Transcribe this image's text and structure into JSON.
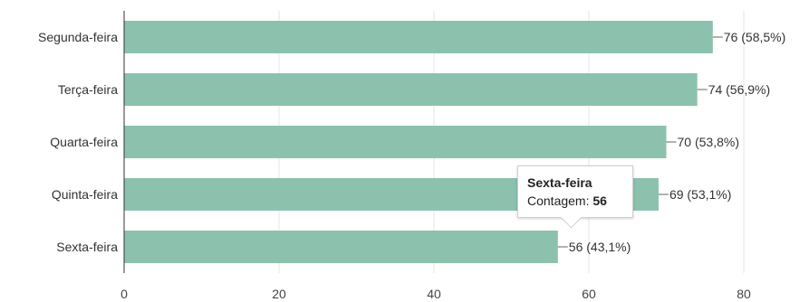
{
  "chart_data": {
    "type": "bar",
    "orientation": "horizontal",
    "categories": [
      "Segunda-feira",
      "Terça-feira",
      "Quarta-feira",
      "Quinta-feira",
      "Sexta-feira"
    ],
    "values": [
      76,
      74,
      70,
      69,
      56
    ],
    "data_labels": [
      "76 (58,5%)",
      "74 (56,9%)",
      "70 (53,8%)",
      "69 (53,1%)",
      "56 (43,1%)"
    ],
    "xlim": [
      0,
      80
    ],
    "x_ticks": [
      0,
      20,
      40,
      60,
      80
    ],
    "grid": true,
    "bar_color": "#8cc2ad",
    "grid_color": "#e6e6e6"
  },
  "tooltip": {
    "title": "Sexta-feira",
    "label": "Contagem:",
    "value": "56"
  }
}
